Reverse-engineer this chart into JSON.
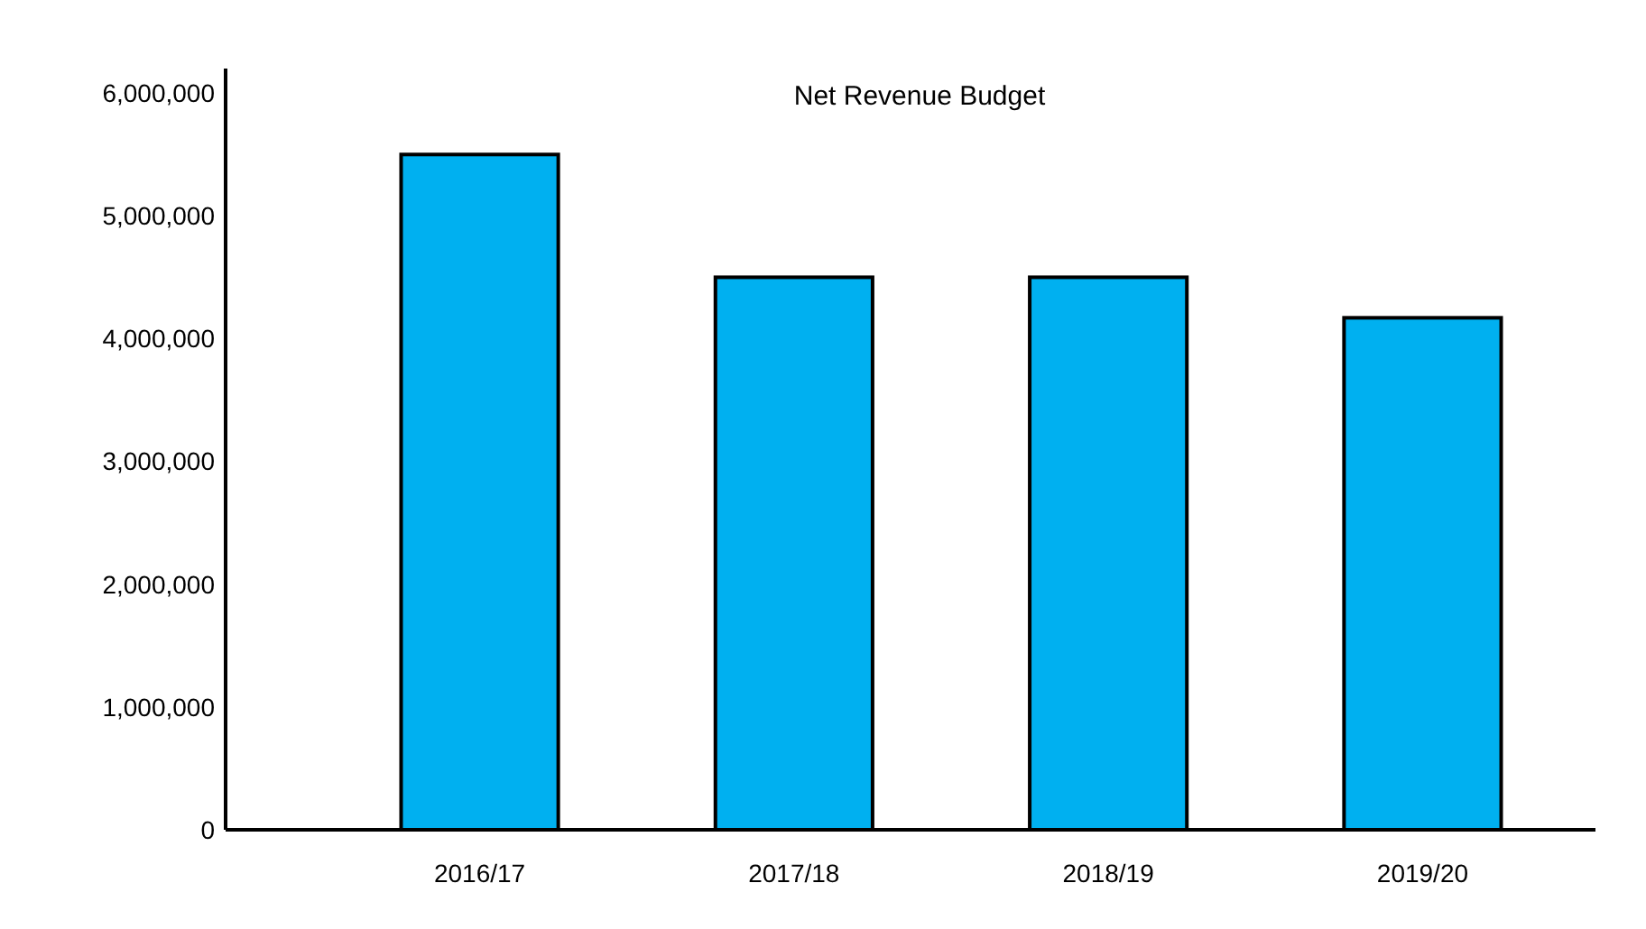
{
  "chart_data": {
    "type": "bar",
    "title": "Net Revenue Budget",
    "categories": [
      "2016/17",
      "2017/18",
      "2018/19",
      "2019/20"
    ],
    "values": [
      5500000,
      4500000,
      4500000,
      4170000
    ],
    "color": "#00b0f0",
    "ylim": [
      0,
      6200000
    ],
    "yticks": [
      0,
      {
        "value": 1000000,
        "label": "1,000,000"
      },
      {
        "value": 2000000,
        "label": "2,000,000"
      },
      {
        "value": 3000000,
        "label": "3,000,000"
      },
      {
        "value": 4000000,
        "label": "4,000,000"
      },
      {
        "value": 5000000,
        "label": "5,000,000"
      },
      {
        "value": 6000000,
        "label": "6,000,000"
      }
    ],
    "grid": false
  }
}
